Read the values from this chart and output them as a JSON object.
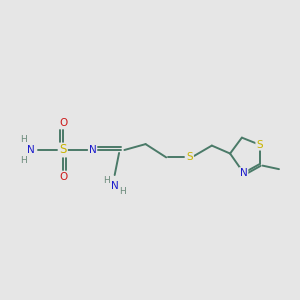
{
  "bg_color": "#e6e6e6",
  "bond_color": "#4a7a68",
  "atom_colors": {
    "S": "#c8b400",
    "N": "#1a1acc",
    "O": "#cc1a1a",
    "H": "#6a8a7a",
    "C": "#4a7a68"
  }
}
